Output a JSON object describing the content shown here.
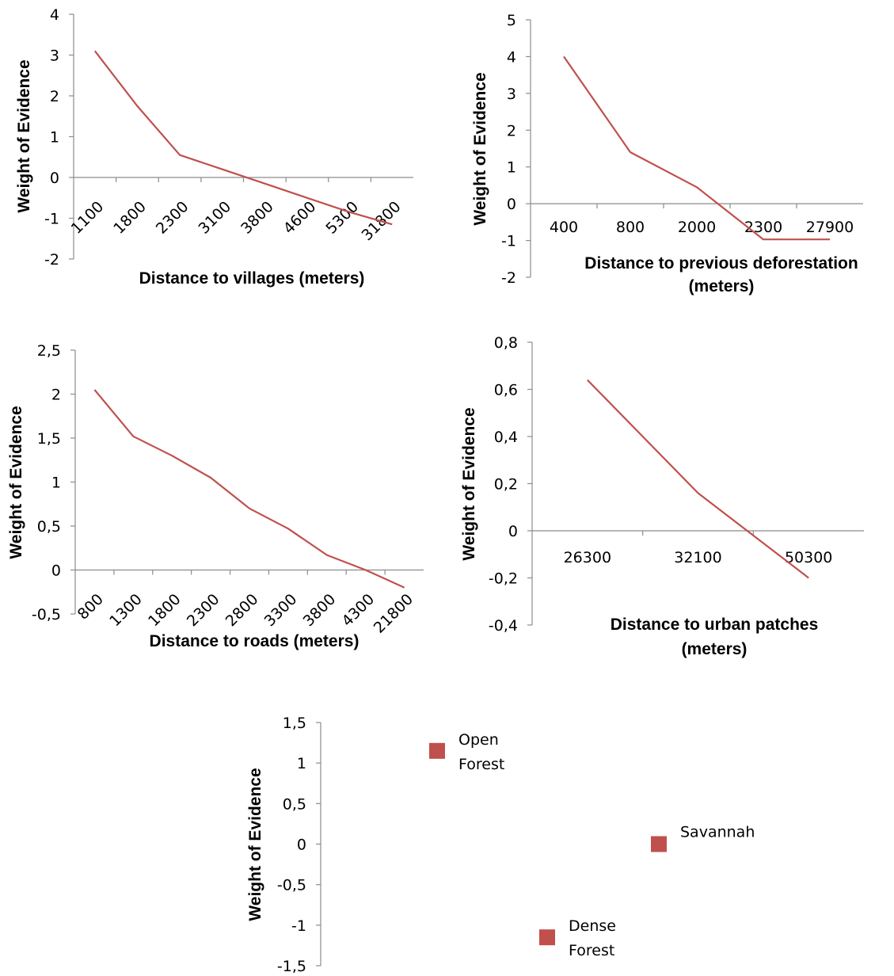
{
  "chart_data": [
    {
      "type": "line",
      "categories": [
        "1100",
        "1800",
        "2300",
        "3100",
        "3800",
        "4600",
        "5300",
        "31800"
      ],
      "series": [
        {
          "values": [
            3.1,
            1.75,
            0.55,
            0.2,
            -0.15,
            -0.5,
            -0.85,
            -1.15
          ]
        }
      ],
      "xlabel": "Distance to villages (meters)",
      "ylabel": "Weight of Evidence",
      "ylim": [
        -2,
        4
      ],
      "yticks": [
        "-2",
        "-1",
        "0",
        "1",
        "2",
        "3",
        "4"
      ],
      "grid": false,
      "color": "#c0504d"
    },
    {
      "type": "line",
      "categories": [
        "400",
        "800",
        "2000",
        "2300",
        "27900"
      ],
      "series": [
        {
          "values": [
            4.0,
            1.4,
            0.45,
            -0.97,
            -0.97
          ]
        }
      ],
      "xlabel": [
        "Distance to previous deforestation",
        "(meters)"
      ],
      "ylabel": "Weight of Evidence",
      "ylim": [
        -2,
        5
      ],
      "yticks": [
        "-2",
        "-1",
        "0",
        "1",
        "2",
        "3",
        "4",
        "5"
      ],
      "grid": false,
      "color": "#c0504d"
    },
    {
      "type": "line",
      "categories": [
        "800",
        "1300",
        "1800",
        "2300",
        "2800",
        "3300",
        "3800",
        "4300",
        "21800"
      ],
      "series": [
        {
          "values": [
            2.05,
            1.52,
            1.3,
            1.05,
            0.7,
            0.47,
            0.17,
            0.0,
            -0.2
          ]
        }
      ],
      "xlabel": "Distance to roads (meters)",
      "ylabel": "Weight of Evidence",
      "ylim": [
        -0.5,
        2.5
      ],
      "yticks": [
        "-0,5",
        "0",
        "0,5",
        "1",
        "1,5",
        "2",
        "2,5"
      ],
      "grid": false,
      "color": "#c0504d"
    },
    {
      "type": "line",
      "categories": [
        "26300",
        "32100",
        "50300"
      ],
      "series": [
        {
          "values": [
            0.64,
            0.16,
            -0.2
          ]
        }
      ],
      "xlabel": [
        "Distance to urban patches",
        "(meters)"
      ],
      "ylabel": "Weight of Evidence",
      "ylim": [
        -0.4,
        0.8
      ],
      "yticks": [
        "-0,4",
        "-0,2",
        "0",
        "0,2",
        "0,4",
        "0,6",
        "0,8"
      ],
      "grid": false,
      "color": "#c0504d"
    },
    {
      "type": "scatter",
      "points": [
        {
          "label": [
            "Open",
            "Forest"
          ],
          "x": 1,
          "y": 1.15
        },
        {
          "label": [
            "Dense",
            "Forest"
          ],
          "x": 2,
          "y": -1.15
        },
        {
          "label": [
            "Savannah"
          ],
          "x": 3,
          "y": 0.0
        }
      ],
      "ylabel": "Weight of Evidence",
      "ylim": [
        -1.5,
        1.5
      ],
      "yticks": [
        "-1,5",
        "-1",
        "-0,5",
        "0",
        "0,5",
        "1",
        "1,5"
      ],
      "grid": false,
      "color": "#c0504d"
    }
  ]
}
